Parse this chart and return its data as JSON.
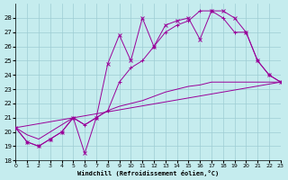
{
  "xlabel": "Windchill (Refroidissement éolien,°C)",
  "xlim": [
    0,
    23
  ],
  "ylim": [
    18,
    29
  ],
  "yticks": [
    18,
    19,
    20,
    21,
    22,
    23,
    24,
    25,
    26,
    27,
    28
  ],
  "xticks": [
    0,
    1,
    2,
    3,
    4,
    5,
    6,
    7,
    8,
    9,
    10,
    11,
    12,
    13,
    14,
    15,
    16,
    17,
    18,
    19,
    20,
    21,
    22,
    23
  ],
  "bg_color": "#c5ecee",
  "grid_color": "#9ecdd3",
  "line_color": "#990099",
  "line1_x": [
    0,
    1,
    2,
    3,
    4,
    5,
    6,
    7,
    8,
    9,
    10,
    11,
    12,
    13,
    14,
    15,
    16,
    17,
    18,
    19,
    20,
    21,
    22,
    23
  ],
  "line1_y": [
    20.3,
    19.3,
    19.0,
    19.5,
    20.0,
    21.0,
    18.5,
    21.0,
    24.8,
    26.8,
    25.0,
    28.0,
    26.0,
    27.5,
    27.8,
    28.0,
    26.5,
    28.5,
    28.5,
    28.0,
    27.0,
    25.0,
    24.0,
    23.5
  ],
  "line2_x": [
    0,
    1,
    2,
    3,
    4,
    5,
    6,
    7,
    8,
    9,
    10,
    11,
    12,
    13,
    14,
    15,
    16,
    17,
    18,
    19,
    20,
    21,
    22,
    23
  ],
  "line2_y": [
    20.3,
    19.3,
    19.0,
    19.5,
    20.0,
    21.0,
    20.5,
    21.0,
    21.5,
    23.5,
    24.5,
    25.0,
    26.0,
    27.0,
    27.5,
    27.8,
    28.5,
    28.5,
    28.0,
    27.0,
    27.0,
    25.0,
    24.0,
    23.5
  ],
  "line3_x": [
    0,
    1,
    2,
    3,
    4,
    5,
    6,
    7,
    8,
    9,
    10,
    11,
    12,
    13,
    14,
    15,
    16,
    17,
    18,
    19,
    20,
    21,
    22,
    23
  ],
  "line3_y": [
    20.3,
    19.8,
    19.5,
    20.0,
    20.5,
    21.0,
    20.5,
    21.0,
    21.5,
    21.8,
    22.0,
    22.2,
    22.5,
    22.8,
    23.0,
    23.2,
    23.3,
    23.5,
    23.5,
    23.5,
    23.5,
    23.5,
    23.5,
    23.5
  ],
  "line4_x": [
    0,
    23
  ],
  "line4_y": [
    20.3,
    23.5
  ]
}
